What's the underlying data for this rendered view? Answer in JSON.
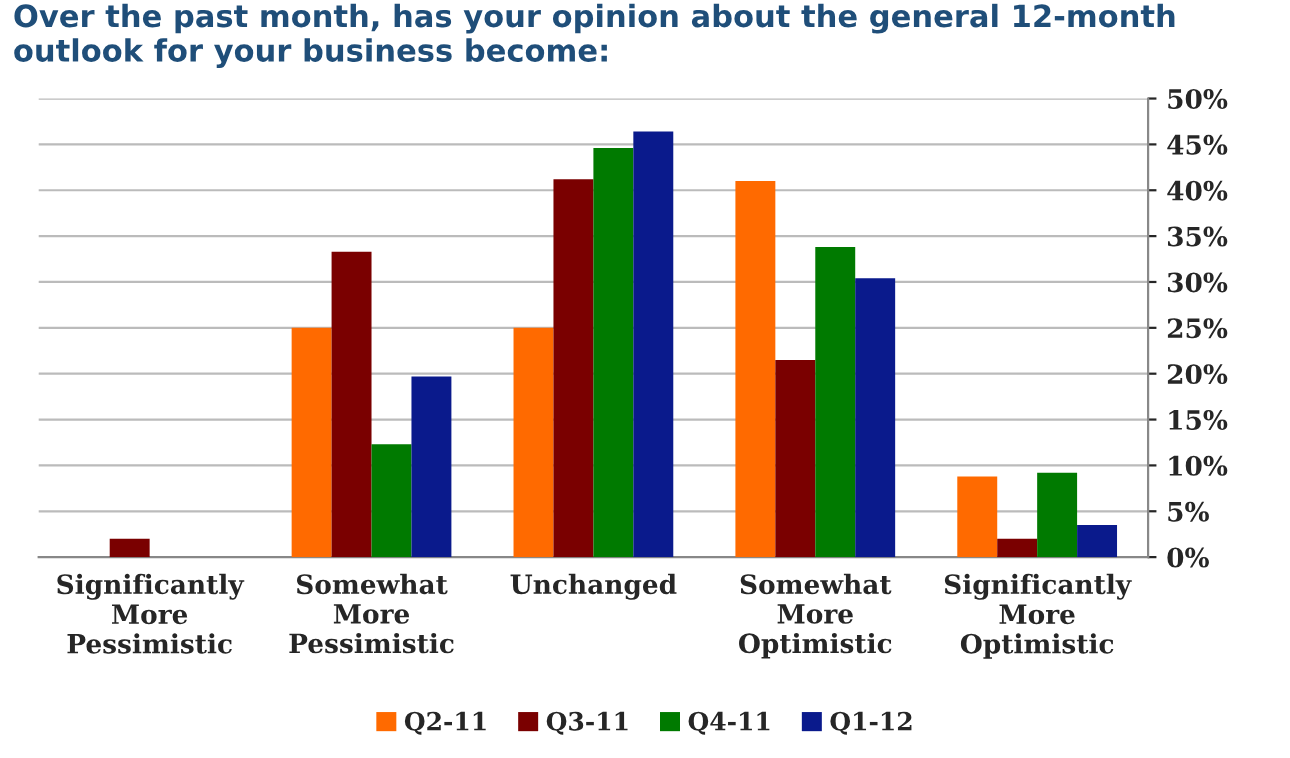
{
  "chart_data": {
    "type": "bar",
    "title": "Over the past month, has your opinion about the general 12-month\noutlook for your business become:",
    "categories": [
      "Significantly\nMore\nPessimistic",
      "Somewhat\nMore\nPessimistic",
      "Unchanged",
      "Somewhat\nMore\nOptimistic",
      "Significantly\nMore\nOptimistic"
    ],
    "series": [
      {
        "name": "Q2-11",
        "color": "#ff6a00",
        "values": [
          0,
          25,
          25,
          41,
          8.8
        ]
      },
      {
        "name": "Q3-11",
        "color": "#7a0000",
        "values": [
          2,
          33.3,
          41.2,
          21.5,
          2
        ]
      },
      {
        "name": "Q4-11",
        "color": "#007a00",
        "values": [
          0,
          12.3,
          44.6,
          33.8,
          9.2
        ]
      },
      {
        "name": "Q1-12",
        "color": "#0a1a8c",
        "values": [
          0,
          19.7,
          46.4,
          30.4,
          3.5
        ]
      }
    ],
    "ylim": [
      0,
      50
    ],
    "yticks": [
      {
        "value": 0,
        "label": "0%"
      },
      {
        "value": 5,
        "label": "5%"
      },
      {
        "value": 10,
        "label": "10%"
      },
      {
        "value": 15,
        "label": "15%"
      },
      {
        "value": 20,
        "label": "20%"
      },
      {
        "value": 25,
        "label": "25%"
      },
      {
        "value": 30,
        "label": "30%"
      },
      {
        "value": 35,
        "label": "35%"
      },
      {
        "value": 40,
        "label": "40%"
      },
      {
        "value": 45,
        "label": "45%"
      },
      {
        "value": 50,
        "label": "50%"
      }
    ],
    "grid": "y",
    "legend": "bottom"
  }
}
